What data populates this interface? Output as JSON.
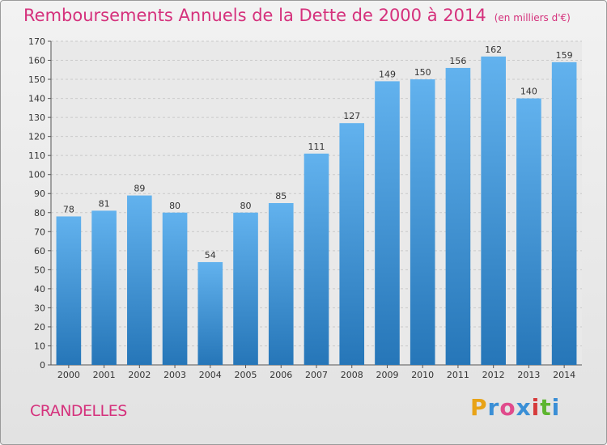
{
  "chart_data": {
    "type": "bar",
    "title": "Remboursements Annuels de la Dette de 2000 à 2014",
    "unit_note": "(en milliers d'€)",
    "categories": [
      "2000",
      "2001",
      "2002",
      "2003",
      "2004",
      "2005",
      "2006",
      "2007",
      "2008",
      "2009",
      "2010",
      "2011",
      "2012",
      "2013",
      "2014"
    ],
    "values": [
      78,
      81,
      89,
      80,
      54,
      80,
      85,
      111,
      127,
      149,
      150,
      156,
      162,
      140,
      159
    ],
    "ylim": [
      0,
      170
    ],
    "yticks": [
      "0",
      "10",
      "20",
      "30",
      "40",
      "50",
      "60",
      "70",
      "80",
      "90",
      "100",
      "110",
      "120",
      "130",
      "140",
      "150",
      "160",
      "170"
    ],
    "grid": true,
    "bar_color": "#3a93d8"
  },
  "footer": {
    "commune": "CRANDELLES",
    "brand_letters": [
      "P",
      "r",
      "o",
      "x",
      "i",
      "t",
      "i"
    ],
    "brand_colors": [
      "#e8a317",
      "#3a8fd6",
      "#e04b8c",
      "#3a8fd6",
      "#d63a3a",
      "#5db52f",
      "#3a8fd6"
    ]
  }
}
